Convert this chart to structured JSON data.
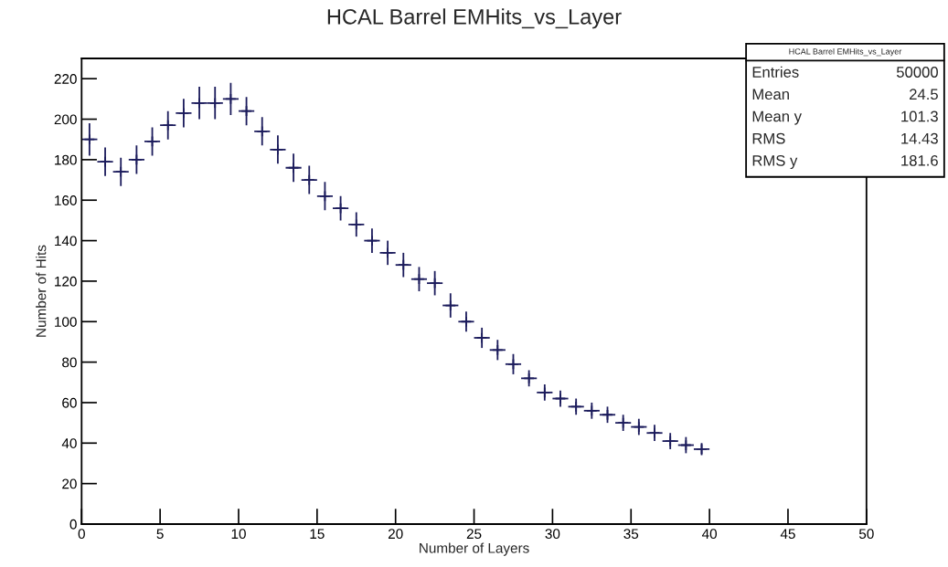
{
  "chart_data": {
    "type": "scatter",
    "title": "HCAL Barrel EMHits_vs_Layer",
    "xlabel": "Number of Layers",
    "ylabel": "Number of Hits",
    "x": [
      0.5,
      1.5,
      2.5,
      3.5,
      4.5,
      5.5,
      6.5,
      7.5,
      8.5,
      9.5,
      10.5,
      11.5,
      12.5,
      13.5,
      14.5,
      15.5,
      16.5,
      17.5,
      18.5,
      19.5,
      20.5,
      21.5,
      22.5,
      23.5,
      24.5,
      25.5,
      26.5,
      27.5,
      28.5,
      29.5,
      30.5,
      31.5,
      32.5,
      33.5,
      34.5,
      35.5,
      36.5,
      37.5,
      38.5,
      39.5
    ],
    "series": [
      {
        "color": "#1c1c5c",
        "values": [
          190,
          179,
          174,
          180,
          189,
          197,
          203,
          208,
          208,
          210,
          204,
          194,
          185,
          176,
          170,
          162,
          156,
          148,
          140,
          134,
          128,
          121,
          119,
          108,
          100,
          92,
          86,
          79,
          72,
          65,
          62,
          58,
          56,
          54,
          50,
          48,
          45,
          41,
          39,
          37
        ],
        "errors": [
          8,
          7,
          7,
          7,
          7,
          7,
          7,
          8,
          8,
          8,
          7,
          7,
          7,
          7,
          7,
          7,
          6,
          6,
          6,
          6,
          6,
          6,
          6,
          6,
          5,
          5,
          5,
          5,
          4,
          4,
          4,
          4,
          4,
          4,
          4,
          4,
          4,
          4,
          4,
          3
        ],
        "xerrors": [
          0.5,
          0.5,
          0.5,
          0.5,
          0.5,
          0.5,
          0.5,
          0.5,
          0.5,
          0.5,
          0.5,
          0.5,
          0.5,
          0.5,
          0.5,
          0.5,
          0.5,
          0.5,
          0.5,
          0.5,
          0.5,
          0.5,
          0.5,
          0.5,
          0.5,
          0.5,
          0.5,
          0.5,
          0.5,
          0.5,
          0.5,
          0.5,
          0.5,
          0.5,
          0.5,
          0.5,
          0.5,
          0.5,
          0.5,
          0.5
        ]
      }
    ],
    "marker": "cross",
    "xlim": [
      0,
      50
    ],
    "xticks": [
      0,
      5,
      10,
      15,
      20,
      25,
      30,
      35,
      40,
      45,
      50
    ],
    "ylim": [
      0,
      230
    ],
    "yticks": [
      0,
      20,
      40,
      60,
      80,
      100,
      120,
      140,
      160,
      180,
      200,
      220
    ],
    "grid": false,
    "legend": false,
    "annotations": [
      "HCAL Barrel EMHits_vs_Layer",
      "Entries",
      "50000",
      "Mean",
      "24.5",
      "Mean y",
      "101.3",
      "RMS",
      "14.43",
      "RMS y",
      "181.6"
    ]
  }
}
